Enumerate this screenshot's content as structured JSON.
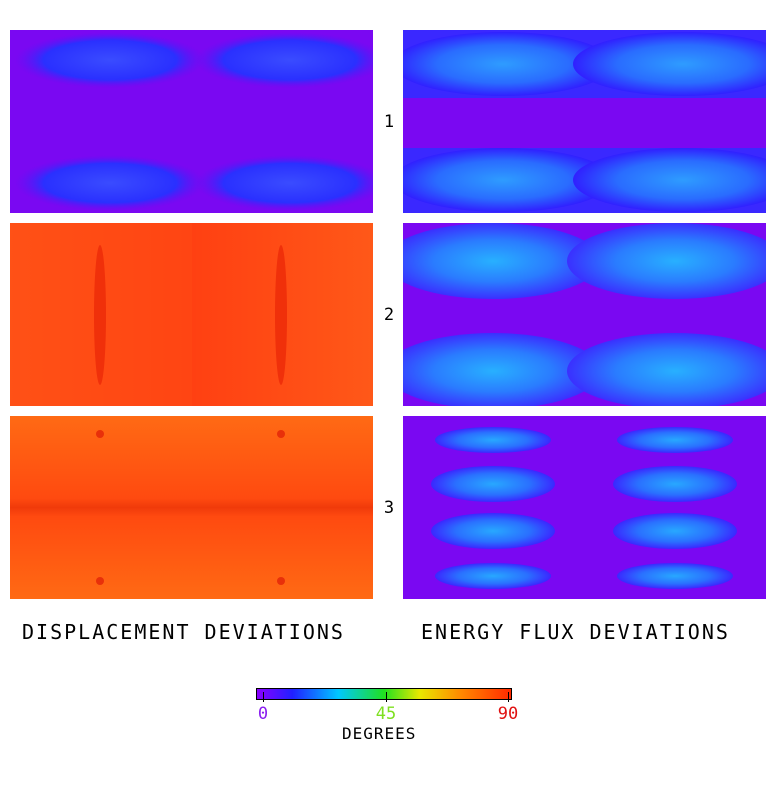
{
  "panel_rows": [
    {
      "label": "1",
      "displacement_fill": "#7a08f2",
      "flux_fill": "#7a08f2"
    },
    {
      "label": "2",
      "displacement_fill": "#ff4a14",
      "flux_fill": "#7a08f2"
    },
    {
      "label": "3",
      "displacement_fill": "#ff5a12",
      "flux_fill": "#7a08f2"
    }
  ],
  "captions": {
    "left": "DISPLACEMENT DEVIATIONS",
    "right": "ENERGY FLUX DEVIATIONS"
  },
  "colorbar": {
    "title": "DEGREES",
    "ticks": [
      {
        "label": "0",
        "value": 0,
        "color": "#8a1ef0"
      },
      {
        "label": "45",
        "value": 45,
        "color": "#7ee020"
      },
      {
        "label": "90",
        "value": 90,
        "color": "#e01010"
      }
    ],
    "range": [
      0,
      90
    ],
    "gradient": [
      "#8a00ff",
      "#2020ff",
      "#00c8ff",
      "#20e020",
      "#e8e800",
      "#ff8a00",
      "#ff2a00"
    ]
  }
}
